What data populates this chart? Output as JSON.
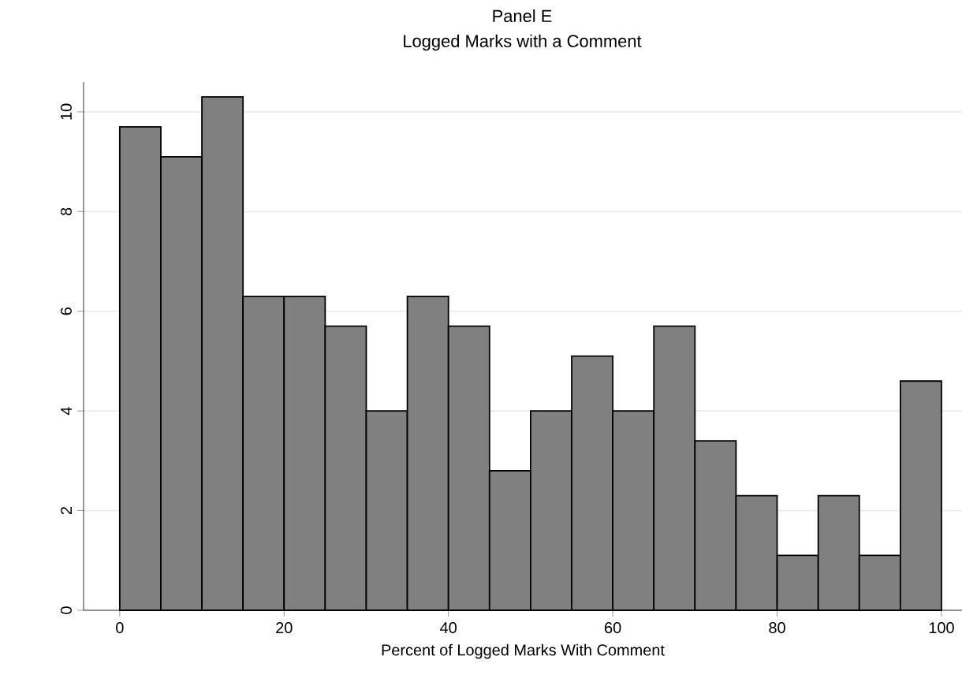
{
  "chart_data": {
    "type": "histogram",
    "title": "Panel E",
    "subtitle": "Logged Marks with a Comment",
    "xlabel": "Percent of Logged Marks With Comment",
    "bins": [
      0,
      5,
      10,
      15,
      20,
      25,
      30,
      35,
      40,
      45,
      50,
      55,
      60,
      65,
      70,
      75,
      80,
      85,
      90,
      95,
      100
    ],
    "values": [
      9.7,
      9.1,
      10.3,
      6.3,
      6.3,
      5.7,
      4.0,
      6.3,
      5.7,
      2.8,
      4.0,
      5.1,
      4.0,
      5.7,
      3.4,
      2.3,
      1.1,
      2.3,
      1.1,
      4.6
    ],
    "color": "#808080",
    "xlim": [
      -4.4,
      102.5
    ],
    "ylim": [
      0,
      10.6
    ],
    "xticks": [
      0,
      20,
      40,
      60,
      80,
      100
    ],
    "yticks": [
      0,
      2,
      4,
      6,
      8,
      10
    ],
    "grid": "y"
  }
}
